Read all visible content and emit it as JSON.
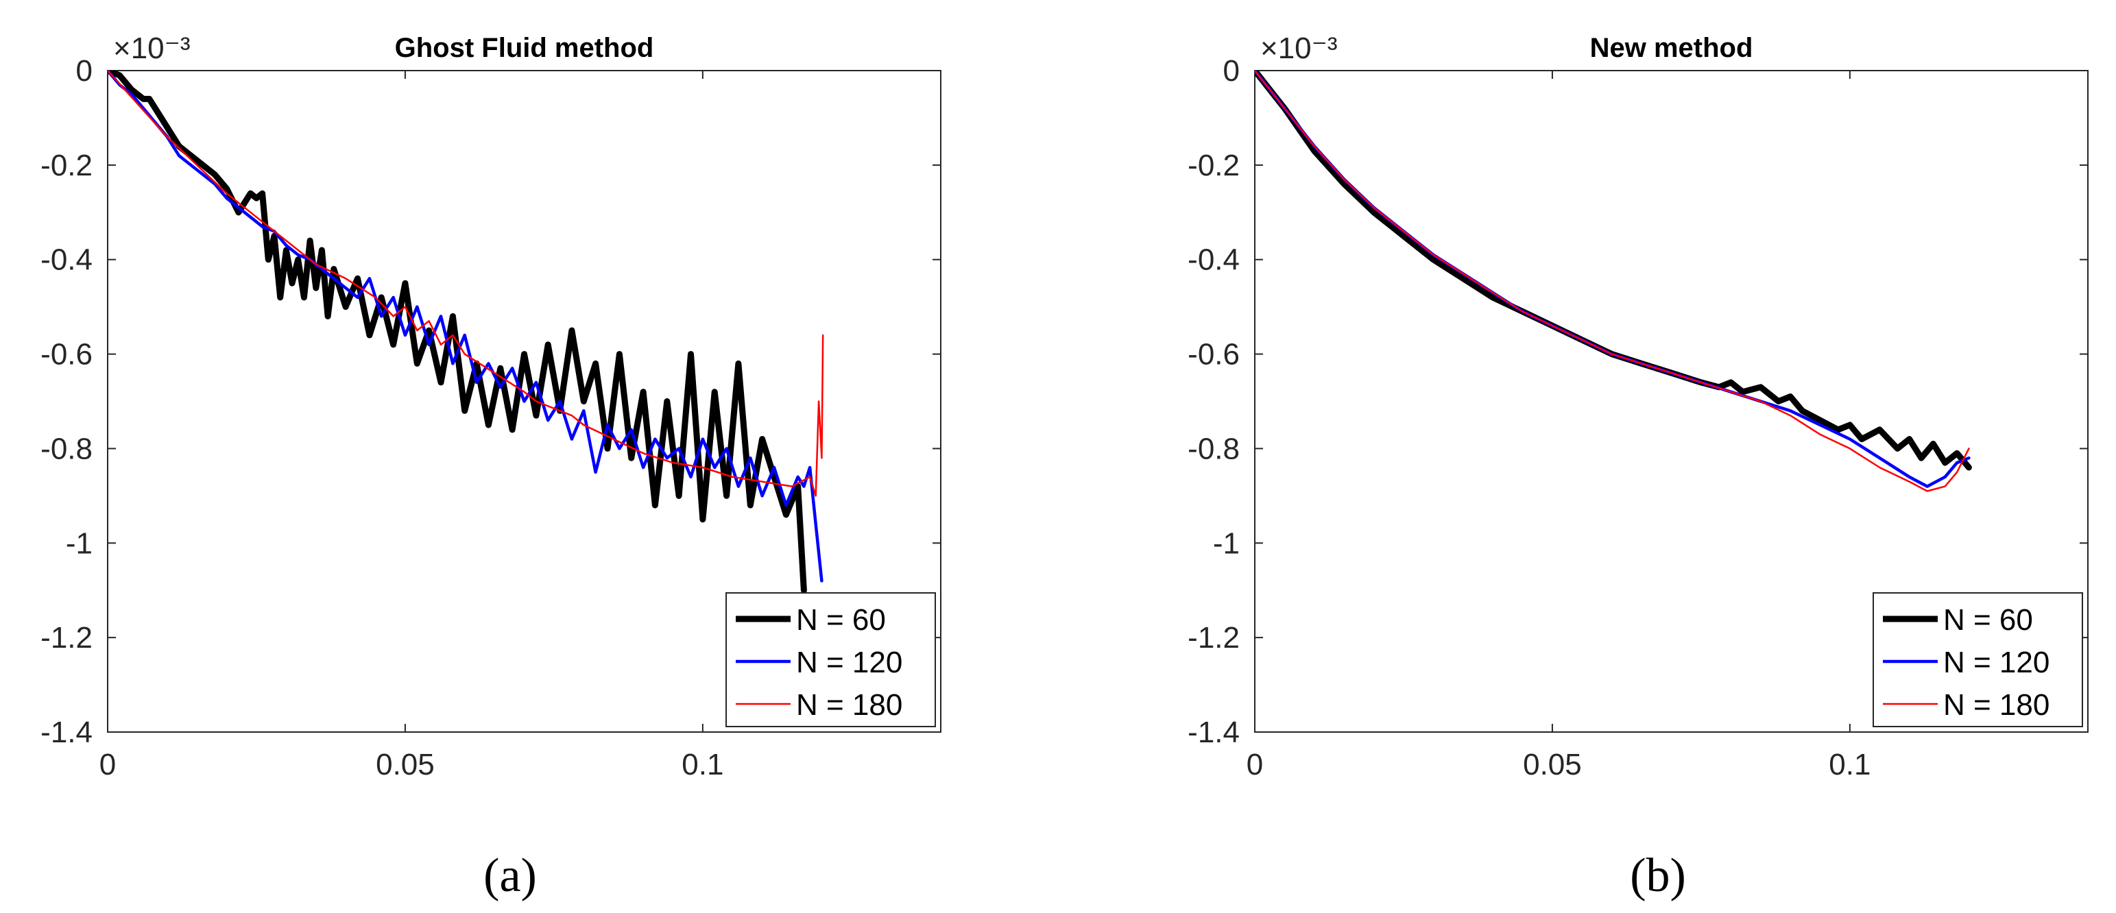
{
  "chart_data": [
    {
      "type": "line",
      "title": "Ghost Fluid method",
      "panel_label": "(a)",
      "exponent": "×10⁻³",
      "xlabel": "",
      "ylabel": "",
      "xlim": [
        0,
        0.14
      ],
      "ylim": [
        -1.4,
        0
      ],
      "xticks": [
        0,
        0.05,
        0.1
      ],
      "xtick_labels": [
        "0",
        "0.05",
        "0.1"
      ],
      "yticks": [
        0,
        -0.2,
        -0.4,
        -0.6,
        -0.8,
        -1,
        -1.2,
        -1.4
      ],
      "ytick_labels": [
        "0",
        "-0.2",
        "-0.4",
        "-0.6",
        "-0.8",
        "-1",
        "-1.2",
        "-1.4"
      ],
      "legend_position": "bottom-right",
      "series": [
        {
          "name": "N = 60",
          "color": "#000000",
          "stroke": "thick",
          "x": [
            0,
            0.002,
            0.004,
            0.006,
            0.007,
            0.009,
            0.012,
            0.015,
            0.018,
            0.02,
            0.022,
            0.024,
            0.025,
            0.026,
            0.027,
            0.028,
            0.029,
            0.03,
            0.031,
            0.032,
            0.033,
            0.034,
            0.035,
            0.036,
            0.037,
            0.038,
            0.04,
            0.042,
            0.044,
            0.046,
            0.048,
            0.05,
            0.052,
            0.054,
            0.056,
            0.058,
            0.06,
            0.062,
            0.064,
            0.066,
            0.068,
            0.07,
            0.072,
            0.074,
            0.076,
            0.078,
            0.08,
            0.082,
            0.084,
            0.086,
            0.088,
            0.09,
            0.092,
            0.094,
            0.096,
            0.098,
            0.1,
            0.102,
            0.104,
            0.106,
            0.108,
            0.11,
            0.112,
            0.114,
            0.116,
            0.117
          ],
          "y": [
            0,
            -0.01,
            -0.04,
            -0.06,
            -0.06,
            -0.1,
            -0.16,
            -0.19,
            -0.22,
            -0.25,
            -0.3,
            -0.26,
            -0.27,
            -0.26,
            -0.4,
            -0.35,
            -0.48,
            -0.38,
            -0.45,
            -0.4,
            -0.48,
            -0.36,
            -0.46,
            -0.38,
            -0.52,
            -0.42,
            -0.5,
            -0.44,
            -0.56,
            -0.48,
            -0.58,
            -0.45,
            -0.62,
            -0.55,
            -0.66,
            -0.52,
            -0.72,
            -0.62,
            -0.75,
            -0.63,
            -0.76,
            -0.6,
            -0.73,
            -0.58,
            -0.72,
            -0.55,
            -0.7,
            -0.62,
            -0.8,
            -0.6,
            -0.82,
            -0.68,
            -0.92,
            -0.7,
            -0.9,
            -0.6,
            -0.95,
            -0.68,
            -0.9,
            -0.62,
            -0.92,
            -0.78,
            -0.86,
            -0.94,
            -0.88,
            -1.1
          ]
        },
        {
          "name": "N = 120",
          "color": "#0000ff",
          "stroke": "medium",
          "x": [
            0,
            0.002,
            0.004,
            0.006,
            0.008,
            0.01,
            0.012,
            0.014,
            0.016,
            0.018,
            0.02,
            0.022,
            0.024,
            0.026,
            0.028,
            0.03,
            0.032,
            0.034,
            0.036,
            0.038,
            0.04,
            0.042,
            0.044,
            0.046,
            0.048,
            0.05,
            0.052,
            0.054,
            0.056,
            0.058,
            0.06,
            0.062,
            0.064,
            0.066,
            0.068,
            0.07,
            0.072,
            0.074,
            0.076,
            0.078,
            0.08,
            0.082,
            0.084,
            0.086,
            0.088,
            0.09,
            0.092,
            0.094,
            0.096,
            0.098,
            0.1,
            0.102,
            0.104,
            0.106,
            0.108,
            0.11,
            0.112,
            0.114,
            0.116,
            0.117,
            0.118,
            0.119,
            0.12
          ],
          "y": [
            0,
            -0.03,
            -0.05,
            -0.08,
            -0.11,
            -0.14,
            -0.18,
            -0.2,
            -0.22,
            -0.24,
            -0.27,
            -0.29,
            -0.31,
            -0.33,
            -0.34,
            -0.37,
            -0.39,
            -0.4,
            -0.42,
            -0.44,
            -0.46,
            -0.48,
            -0.44,
            -0.52,
            -0.48,
            -0.56,
            -0.5,
            -0.58,
            -0.52,
            -0.62,
            -0.56,
            -0.66,
            -0.62,
            -0.67,
            -0.63,
            -0.7,
            -0.66,
            -0.74,
            -0.7,
            -0.78,
            -0.72,
            -0.85,
            -0.75,
            -0.8,
            -0.76,
            -0.84,
            -0.78,
            -0.82,
            -0.8,
            -0.86,
            -0.78,
            -0.84,
            -0.8,
            -0.88,
            -0.82,
            -0.9,
            -0.84,
            -0.92,
            -0.86,
            -0.88,
            -0.84,
            -0.96,
            -1.08
          ]
        },
        {
          "name": "N = 180",
          "color": "#ff0000",
          "stroke": "thin",
          "x": [
            0,
            0.005,
            0.01,
            0.015,
            0.02,
            0.025,
            0.03,
            0.035,
            0.04,
            0.045,
            0.048,
            0.05,
            0.052,
            0.054,
            0.056,
            0.058,
            0.06,
            0.065,
            0.07,
            0.072,
            0.074,
            0.076,
            0.078,
            0.08,
            0.085,
            0.09,
            0.095,
            0.1,
            0.105,
            0.11,
            0.115,
            0.118,
            0.119,
            0.1195,
            0.12,
            0.1202
          ],
          "y": [
            0,
            -0.07,
            -0.14,
            -0.2,
            -0.26,
            -0.31,
            -0.36,
            -0.41,
            -0.44,
            -0.48,
            -0.52,
            -0.5,
            -0.55,
            -0.53,
            -0.58,
            -0.56,
            -0.6,
            -0.64,
            -0.68,
            -0.7,
            -0.71,
            -0.72,
            -0.73,
            -0.75,
            -0.78,
            -0.81,
            -0.83,
            -0.84,
            -0.86,
            -0.87,
            -0.88,
            -0.86,
            -0.9,
            -0.7,
            -0.82,
            -0.56
          ]
        }
      ]
    },
    {
      "type": "line",
      "title": "New method",
      "panel_label": "(b)",
      "exponent": "×10⁻³",
      "xlabel": "",
      "ylabel": "",
      "xlim": [
        0,
        0.14
      ],
      "ylim": [
        -1.4,
        0
      ],
      "xticks": [
        0,
        0.05,
        0.1
      ],
      "xtick_labels": [
        "0",
        "0.05",
        "0.1"
      ],
      "yticks": [
        0,
        -0.2,
        -0.4,
        -0.6,
        -0.8,
        -1,
        -1.2,
        -1.4
      ],
      "ytick_labels": [
        "0",
        "-0.2",
        "-0.4",
        "-0.6",
        "-0.8",
        "-1",
        "-1.2",
        "-1.4"
      ],
      "legend_position": "bottom-right",
      "series": [
        {
          "name": "N = 60",
          "color": "#000000",
          "stroke": "thick",
          "x": [
            0,
            0.005,
            0.01,
            0.015,
            0.02,
            0.025,
            0.03,
            0.035,
            0.04,
            0.045,
            0.05,
            0.055,
            0.06,
            0.065,
            0.07,
            0.075,
            0.078,
            0.08,
            0.082,
            0.085,
            0.088,
            0.09,
            0.092,
            0.095,
            0.098,
            0.1,
            0.102,
            0.105,
            0.108,
            0.11,
            0.112,
            0.114,
            0.116,
            0.118,
            0.12
          ],
          "y": [
            0,
            -0.08,
            -0.17,
            -0.24,
            -0.3,
            -0.35,
            -0.4,
            -0.44,
            -0.48,
            -0.51,
            -0.54,
            -0.57,
            -0.6,
            -0.62,
            -0.64,
            -0.66,
            -0.67,
            -0.66,
            -0.68,
            -0.67,
            -0.7,
            -0.69,
            -0.72,
            -0.74,
            -0.76,
            -0.75,
            -0.78,
            -0.76,
            -0.8,
            -0.78,
            -0.82,
            -0.79,
            -0.83,
            -0.81,
            -0.84
          ]
        },
        {
          "name": "N = 120",
          "color": "#0000ff",
          "stroke": "medium",
          "x": [
            0,
            0.005,
            0.01,
            0.015,
            0.02,
            0.025,
            0.03,
            0.035,
            0.04,
            0.045,
            0.05,
            0.055,
            0.06,
            0.065,
            0.07,
            0.075,
            0.08,
            0.085,
            0.09,
            0.095,
            0.1,
            0.105,
            0.11,
            0.113,
            0.116,
            0.118,
            0.12
          ],
          "y": [
            0,
            -0.08,
            -0.16,
            -0.23,
            -0.29,
            -0.34,
            -0.39,
            -0.43,
            -0.47,
            -0.51,
            -0.54,
            -0.57,
            -0.6,
            -0.62,
            -0.64,
            -0.66,
            -0.68,
            -0.7,
            -0.72,
            -0.75,
            -0.78,
            -0.82,
            -0.86,
            -0.88,
            -0.86,
            -0.83,
            -0.82
          ]
        },
        {
          "name": "N = 180",
          "color": "#ff0000",
          "stroke": "thin",
          "x": [
            0,
            0.005,
            0.01,
            0.015,
            0.02,
            0.025,
            0.03,
            0.035,
            0.04,
            0.045,
            0.05,
            0.055,
            0.06,
            0.065,
            0.07,
            0.075,
            0.08,
            0.085,
            0.09,
            0.095,
            0.1,
            0.105,
            0.11,
            0.113,
            0.116,
            0.118,
            0.12
          ],
          "y": [
            0,
            -0.08,
            -0.16,
            -0.23,
            -0.29,
            -0.34,
            -0.39,
            -0.43,
            -0.47,
            -0.51,
            -0.54,
            -0.57,
            -0.6,
            -0.62,
            -0.64,
            -0.66,
            -0.68,
            -0.7,
            -0.73,
            -0.77,
            -0.8,
            -0.84,
            -0.87,
            -0.89,
            -0.88,
            -0.85,
            -0.8
          ]
        }
      ]
    }
  ]
}
